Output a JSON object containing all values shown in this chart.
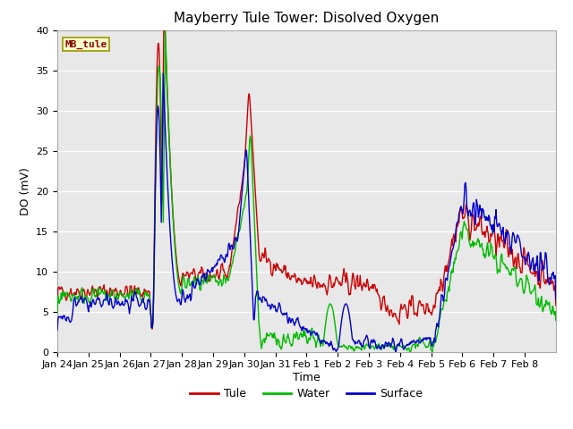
{
  "title": "Mayberry Tule Tower: Disolved Oxygen",
  "ylabel": "DO (mV)",
  "xlabel": "Time",
  "legend_label": "MB_tule",
  "series_labels": [
    "Tule",
    "Water",
    "Surface"
  ],
  "series_colors": [
    "#cc0000",
    "#00bb00",
    "#0000cc"
  ],
  "ylim": [
    0,
    40
  ],
  "background_color": "#e8e8e8",
  "xtick_labels": [
    "Jan 24",
    "Jan 25",
    "Jan 26",
    "Jan 27",
    "Jan 28",
    "Jan 29",
    "Jan 30",
    "Jan 31",
    "Feb 1",
    "Feb 2",
    "Feb 3",
    "Feb 4",
    "Feb 5",
    "Feb 6",
    "Feb 7",
    "Feb 8"
  ],
  "title_fontsize": 11,
  "axis_fontsize": 9,
  "tick_fontsize": 8,
  "legend_fontsize": 9
}
